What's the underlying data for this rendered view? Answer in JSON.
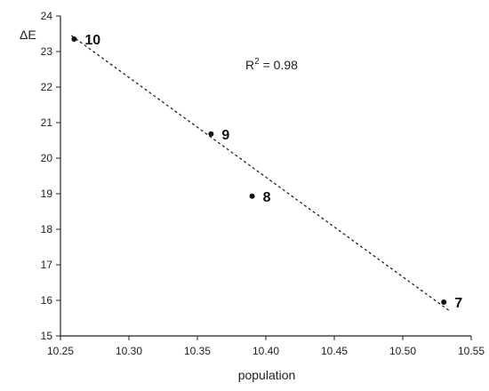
{
  "chart_data": {
    "type": "scatter",
    "title": "",
    "xlabel": "population",
    "ylabel": "ΔE",
    "xlim": [
      10.25,
      10.55
    ],
    "ylim": [
      15,
      24
    ],
    "xticks": [
      "10.25",
      "10.30",
      "10.35",
      "10.40",
      "10.45",
      "10.50",
      "10.55"
    ],
    "yticks": [
      "15",
      "16",
      "17",
      "18",
      "19",
      "20",
      "21",
      "22",
      "23",
      "24"
    ],
    "points": [
      {
        "x": 10.26,
        "y": 23.35,
        "label": "10"
      },
      {
        "x": 10.36,
        "y": 20.68,
        "label": "9"
      },
      {
        "x": 10.39,
        "y": 18.93,
        "label": "8"
      },
      {
        "x": 10.53,
        "y": 15.95,
        "label": "7"
      }
    ],
    "trendline": {
      "x": [
        10.258,
        10.535
      ],
      "y": [
        23.45,
        15.68
      ]
    },
    "annotation": {
      "base": "R",
      "sup": "2",
      "rest": " = 0.98"
    },
    "grid": false,
    "legend": "none"
  }
}
